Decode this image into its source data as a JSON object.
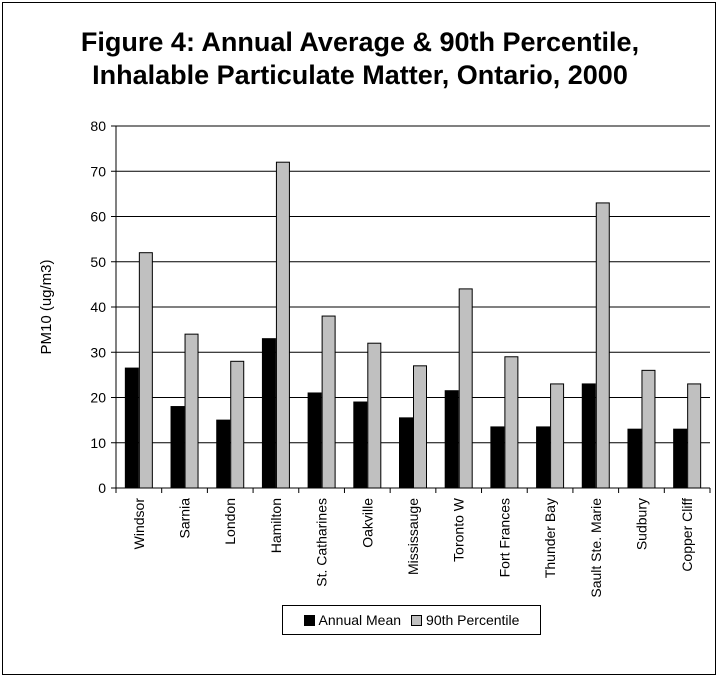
{
  "chart_data": {
    "type": "bar",
    "title": "Figure 4: Annual Average & 90th Percentile,\nInhalable Particulate Matter,  Ontario, 2000",
    "xlabel": "",
    "ylabel": "PM10 (ug/m3)",
    "ylim": [
      0,
      80
    ],
    "yticks": [
      "0",
      "10",
      "20",
      "30",
      "40",
      "50",
      "60",
      "70",
      "80"
    ],
    "grid": true,
    "legend_position": "bottom",
    "categories": [
      "Windsor",
      "Sarnia",
      "London",
      "Hamilton",
      "St. Catharines",
      "Oakville",
      "Mississauge",
      "Toronto W",
      "Fort Frances",
      "Thunder Bay",
      "Sault Ste. Marie",
      "Sudbury",
      "Copper Cliff"
    ],
    "series": [
      {
        "name": "Annual Mean",
        "color": "#000000",
        "values": [
          26.5,
          18,
          15,
          33,
          21,
          19,
          15.5,
          21.5,
          13.5,
          13.5,
          23,
          13,
          13
        ]
      },
      {
        "name": "90th Percentile",
        "color": "#c0c0c0",
        "values": [
          52,
          34,
          28,
          72,
          38,
          32,
          27,
          44,
          29,
          23,
          63,
          26,
          23
        ]
      }
    ]
  }
}
